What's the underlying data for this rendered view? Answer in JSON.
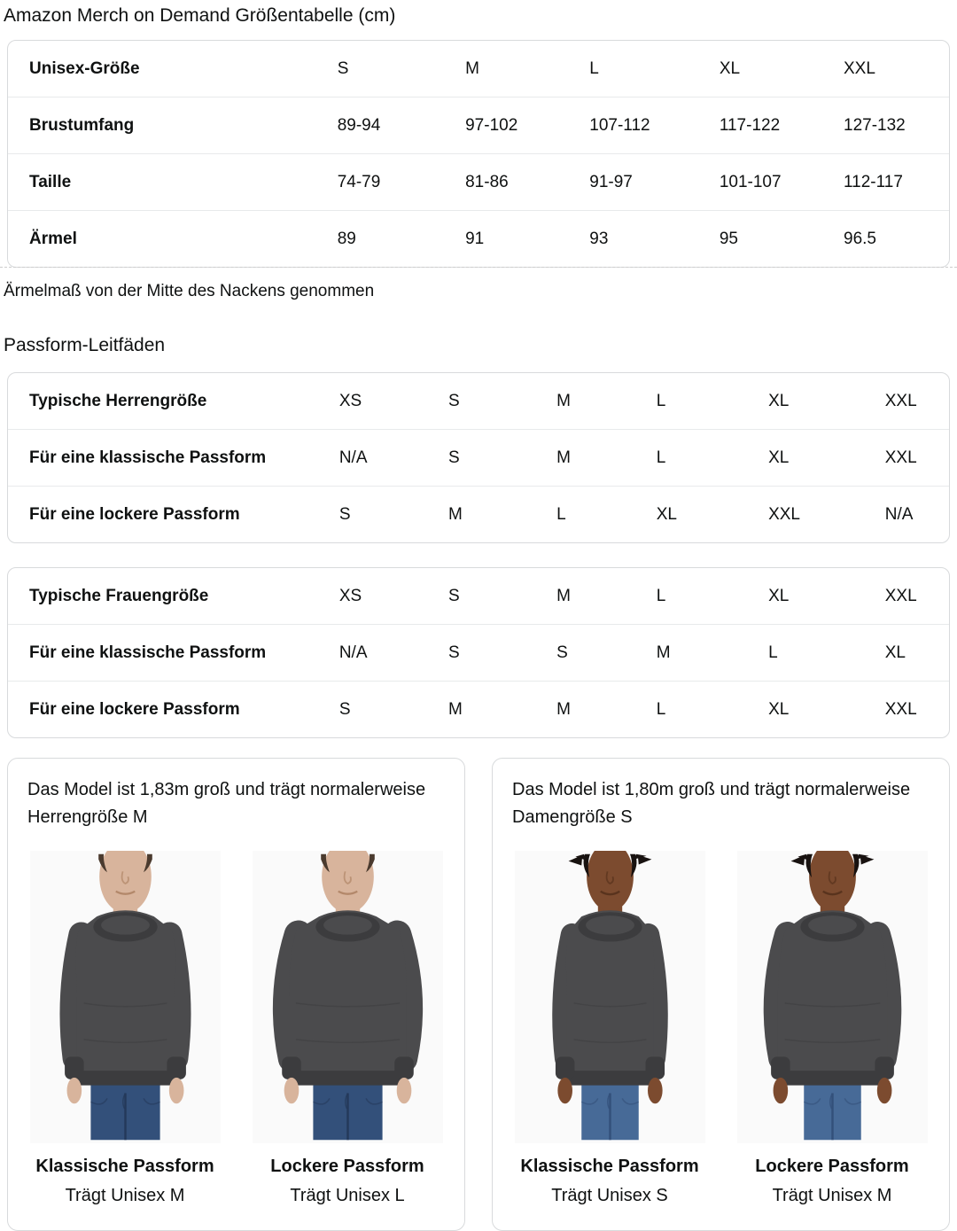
{
  "page_title": "Amazon Merch on Demand Größentabelle (cm)",
  "note": "Ärmelmaß von der Mitte des Nackens genommen",
  "fit_guides_heading": "Passform-Leitfäden",
  "size_table": {
    "rows": [
      {
        "label": "Unisex-Größe",
        "values": [
          "S",
          "M",
          "L",
          "XL",
          "XXL"
        ]
      },
      {
        "label": "Brustumfang",
        "values": [
          "89-94",
          "97-102",
          "107-112",
          "117-122",
          "127-132"
        ]
      },
      {
        "label": "Taille",
        "values": [
          "74-79",
          "81-86",
          "91-97",
          "101-107",
          "112-117"
        ]
      },
      {
        "label": "Ärmel",
        "values": [
          "89",
          "91",
          "93",
          "95",
          "96.5"
        ]
      }
    ]
  },
  "mens_table": {
    "rows": [
      {
        "label": "Typische Herrengröße",
        "values": [
          "XS",
          "S",
          "M",
          "L",
          "XL",
          "XXL"
        ]
      },
      {
        "label": "Für eine klassische Passform",
        "values": [
          "N/A",
          "S",
          "M",
          "L",
          "XL",
          "XXL"
        ]
      },
      {
        "label": "Für eine lockere Passform",
        "values": [
          "S",
          "M",
          "L",
          "XL",
          "XXL",
          "N/A"
        ]
      }
    ]
  },
  "womens_table": {
    "rows": [
      {
        "label": "Typische Frauengröße",
        "values": [
          "XS",
          "S",
          "M",
          "L",
          "XL",
          "XXL"
        ]
      },
      {
        "label": "Für eine klassische Passform",
        "values": [
          "N/A",
          "S",
          "S",
          "M",
          "L",
          "XL"
        ]
      },
      {
        "label": "Für eine lockere Passform",
        "values": [
          "S",
          "M",
          "M",
          "L",
          "XL",
          "XXL"
        ]
      }
    ]
  },
  "cards": [
    {
      "description": "Das Model ist 1,83m groß und trägt normalerweise Herrengröße M",
      "photos": [
        {
          "fit_label": "Klassische Passform",
          "size_label": "Trägt Unisex M"
        },
        {
          "fit_label": "Lockere Passform",
          "size_label": "Trägt Unisex L"
        }
      ]
    },
    {
      "description": "Das Model ist 1,80m groß und trägt normalerweise Damengröße S",
      "photos": [
        {
          "fit_label": "Klassische Passform",
          "size_label": "Trägt Unisex S"
        },
        {
          "fit_label": "Lockere Passform",
          "size_label": "Trägt Unisex M"
        }
      ]
    }
  ],
  "figure_colors": {
    "photo_bg": "#fafafa",
    "sweatshirt": "#4b4b4d",
    "sweatshirt_dark": "#3c3c3e",
    "man_skin": "#d8b49c",
    "man_skin_shade": "#b3886a",
    "man_hair": "#4a3a2e",
    "man_jeans": "#33507a",
    "man_jeans_dark": "#24395a",
    "woman_skin": "#7c4b2f",
    "woman_skin_shade": "#59331d",
    "woman_hair": "#181210",
    "woman_jeans": "#476a97",
    "woman_jeans_dark": "#33507a"
  }
}
